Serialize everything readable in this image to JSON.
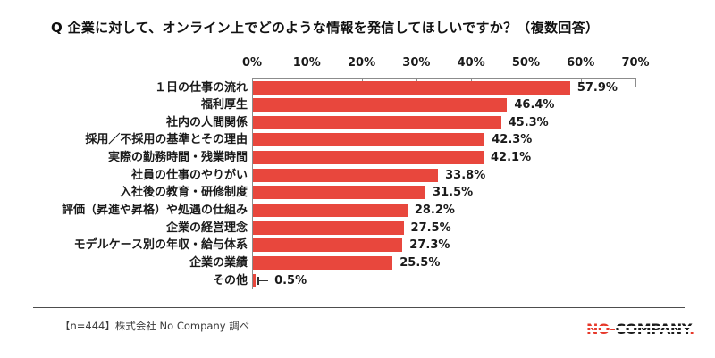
{
  "title": "Q 企業に対して、オンライン上でどのような情報を発信してほしいですか？（複数回答）",
  "chart_data": {
    "type": "bar",
    "orientation": "horizontal",
    "title": "Q 企業に対して、オンライン上でどのような情報を発信してほしいですか？（複数回答）",
    "categories": [
      "１日の仕事の流れ",
      "福利厚生",
      "社内の人間関係",
      "採用／不採用の基準とその理由",
      "実際の勤務時間・残業時間",
      "社員の仕事のやりがい",
      "入社後の教育・研修制度",
      "評価（昇進や昇格）や処遇の仕組み",
      "企業の経営理念",
      "モデルケース別の年収・給与体系",
      "企業の業績",
      "その他"
    ],
    "values": [
      57.9,
      46.4,
      45.3,
      42.3,
      42.1,
      33.8,
      31.5,
      28.2,
      27.5,
      27.3,
      25.5,
      0.5
    ],
    "value_labels": [
      "57.9%",
      "46.4%",
      "45.3%",
      "42.3%",
      "42.1%",
      "33.8%",
      "31.5%",
      "28.2%",
      "27.5%",
      "27.3%",
      "25.5%",
      "0.5%"
    ],
    "axis_tick_labels": [
      "0%",
      "10%",
      "20%",
      "30%",
      "40%",
      "50%",
      "60%",
      "70%"
    ],
    "xlim": [
      0,
      70
    ],
    "xlabel": "",
    "ylabel": "",
    "grid": false,
    "legend": false,
    "bar_color": "#e8473d",
    "axis_color": "#8c8c8c",
    "label_color": "#1a1a1a"
  },
  "footer": {
    "source_note": "【n=444】株式会社 No Company 調べ",
    "logo": {
      "no": "NO-",
      "company": "COMPANY",
      "dot": ".",
      "red": "#e6392b",
      "black": "#1c1c1c"
    }
  }
}
